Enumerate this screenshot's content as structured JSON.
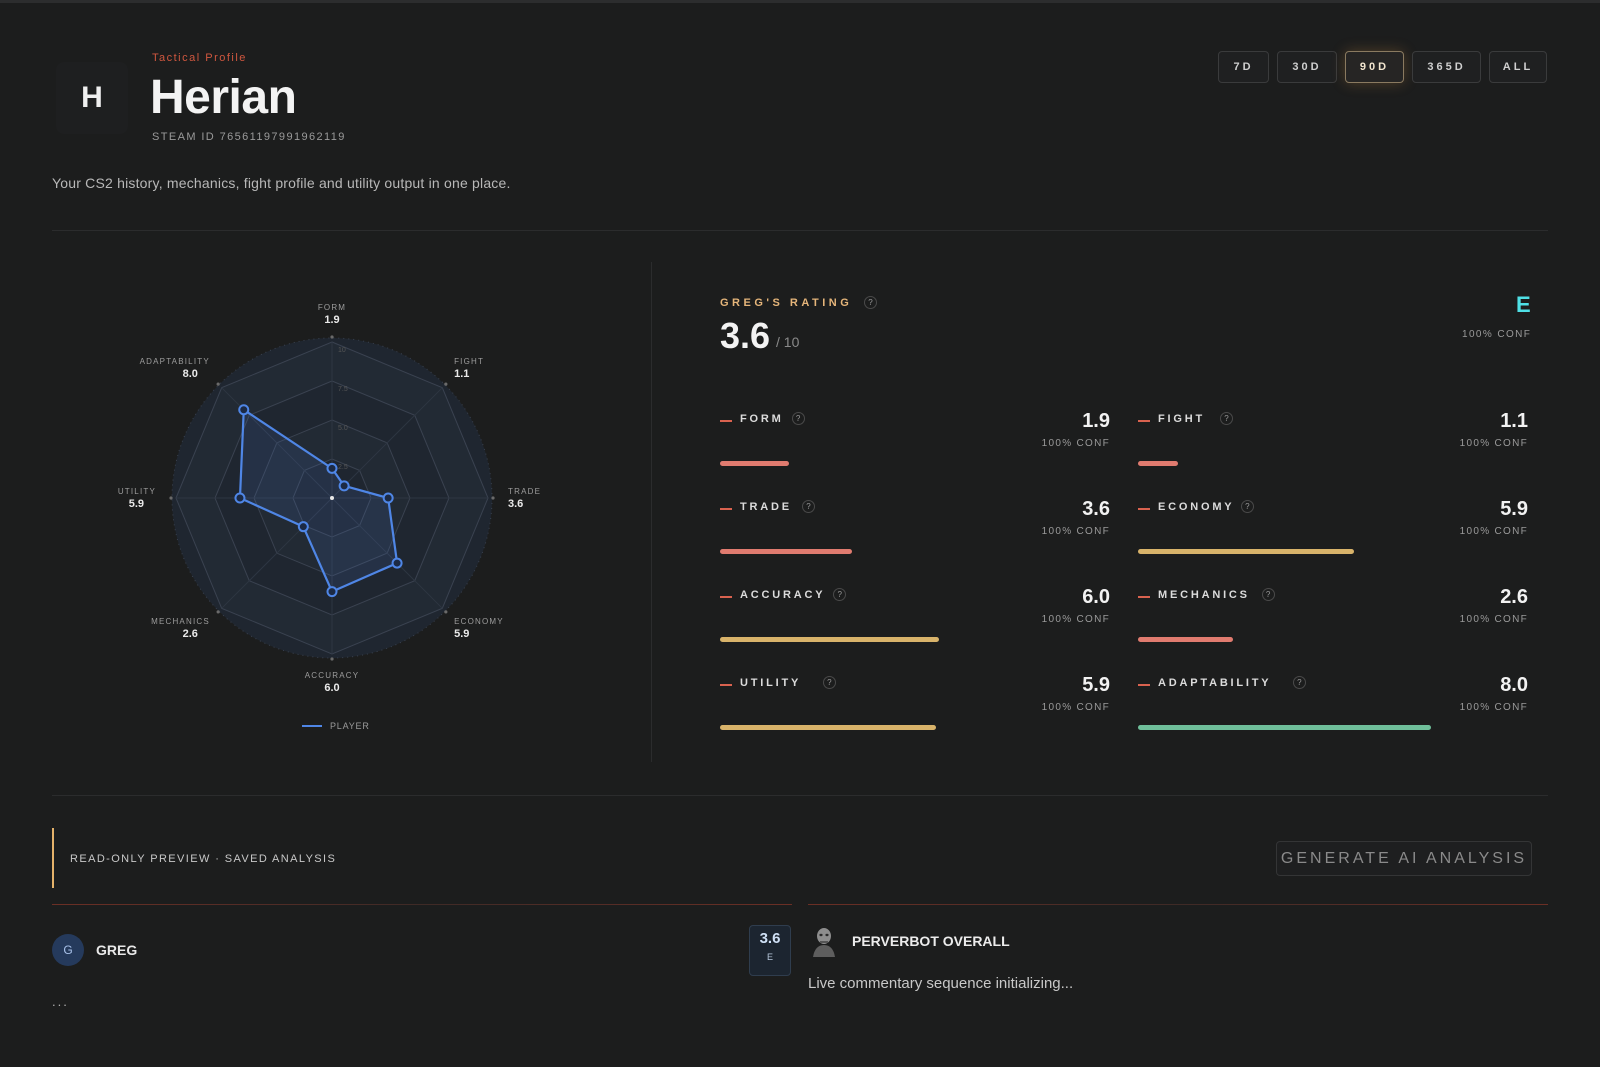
{
  "header": {
    "avatar_letter": "H",
    "eyebrow": "Tactical Profile",
    "player_name": "Herian",
    "steam_id": "STEAM ID 76561197991962119",
    "tagline": "Your CS2 history, mechanics, fight profile and utility output in one place."
  },
  "time_ranges": [
    {
      "label": "7D",
      "active": false
    },
    {
      "label": "30D",
      "active": false
    },
    {
      "label": "90D",
      "active": true
    },
    {
      "label": "365D",
      "active": false
    },
    {
      "label": "ALL",
      "active": false
    }
  ],
  "radar": {
    "max": 10,
    "ring_labels": [
      "10",
      "7.5",
      "5.0",
      "2.5"
    ],
    "axes": [
      {
        "name": "FORM",
        "value": 1.9
      },
      {
        "name": "FIGHT",
        "value": 1.1
      },
      {
        "name": "TRADE",
        "value": 3.6
      },
      {
        "name": "ECONOMY",
        "value": 5.9
      },
      {
        "name": "ACCURACY",
        "value": 6.0
      },
      {
        "name": "MECHANICS",
        "value": 2.6
      },
      {
        "name": "UTILITY",
        "value": 5.9
      },
      {
        "name": "ADAPTABILITY",
        "value": 8.0
      }
    ],
    "legend": "PLAYER",
    "series_color": "#4f86e6"
  },
  "rating": {
    "label": "GREG'S RATING",
    "help": "?",
    "value": "3.6",
    "max": "/ 10",
    "grade": "E",
    "confidence": "100% CONF"
  },
  "metrics": [
    {
      "name": "FORM",
      "value": "1.9",
      "score": 1.9,
      "conf": "100% CONF",
      "color": "#e07b6f"
    },
    {
      "name": "FIGHT",
      "value": "1.1",
      "score": 1.1,
      "conf": "100% CONF",
      "color": "#e07b6f"
    },
    {
      "name": "TRADE",
      "value": "3.6",
      "score": 3.6,
      "conf": "100% CONF",
      "color": "#e07b6f"
    },
    {
      "name": "ECONOMY",
      "value": "5.9",
      "score": 5.9,
      "conf": "100% CONF",
      "color": "#d8b36a"
    },
    {
      "name": "ACCURACY",
      "value": "6.0",
      "score": 6.0,
      "conf": "100% CONF",
      "color": "#d8b36a"
    },
    {
      "name": "MECHANICS",
      "value": "2.6",
      "score": 2.6,
      "conf": "100% CONF",
      "color": "#e07b6f"
    },
    {
      "name": "UTILITY",
      "value": "5.9",
      "score": 5.9,
      "conf": "100% CONF",
      "color": "#d8b36a"
    },
    {
      "name": "ADAPTABILITY",
      "value": "8.0",
      "score": 8.0,
      "conf": "100% CONF",
      "color": "#6fbf9a"
    }
  ],
  "analysis": {
    "preview_label": "READ-ONLY PREVIEW · SAVED ANALYSIS",
    "generate_button": "GENERATE AI ANALYSIS",
    "greg": {
      "initial": "G",
      "name": "GREG",
      "body": "..."
    },
    "score_badge": {
      "score": "3.6",
      "grade": "E"
    },
    "bot": {
      "name": "PERVERBOT OVERALL",
      "body": "Live commentary sequence initializing..."
    }
  }
}
